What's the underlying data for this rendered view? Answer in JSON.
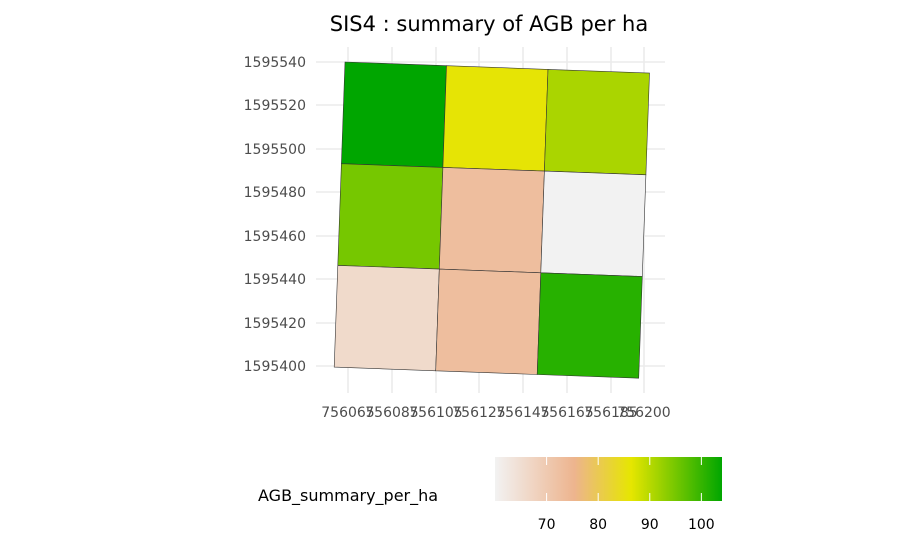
{
  "chart_data": {
    "type": "heatmap",
    "title": "SIS4 : summary of AGB per ha",
    "xlabel": "",
    "ylabel": "",
    "x_ticks": [
      "756065",
      "756085",
      "756105",
      "756125",
      "756145",
      "756165",
      "756185",
      "756200"
    ],
    "y_ticks": [
      "1595540",
      "1595520",
      "1595500",
      "1595480",
      "1595460",
      "1595440",
      "1595420",
      "1595400"
    ],
    "grid": true,
    "cells": [
      {
        "row": 0,
        "col": 0,
        "value": 104
      },
      {
        "row": 0,
        "col": 1,
        "value": 86
      },
      {
        "row": 0,
        "col": 2,
        "value": 91
      },
      {
        "row": 1,
        "col": 0,
        "value": 95
      },
      {
        "row": 1,
        "col": 1,
        "value": 73
      },
      {
        "row": 1,
        "col": 2,
        "value": 60
      },
      {
        "row": 2,
        "col": 0,
        "value": 66
      },
      {
        "row": 2,
        "col": 1,
        "value": 73
      },
      {
        "row": 2,
        "col": 2,
        "value": 101
      }
    ],
    "legend": {
      "title": "AGB_summary_per_ha",
      "position": "bottom",
      "ticks": [
        "70",
        "80",
        "90",
        "100"
      ],
      "tick_values": [
        70,
        80,
        90,
        100
      ],
      "range": [
        60,
        104
      ],
      "gradient_colors": [
        "#f2f2f2",
        "#edb48e",
        "#e6e600",
        "#00a600"
      ],
      "gradient_stops": [
        0,
        0.35,
        0.6,
        1
      ]
    }
  }
}
